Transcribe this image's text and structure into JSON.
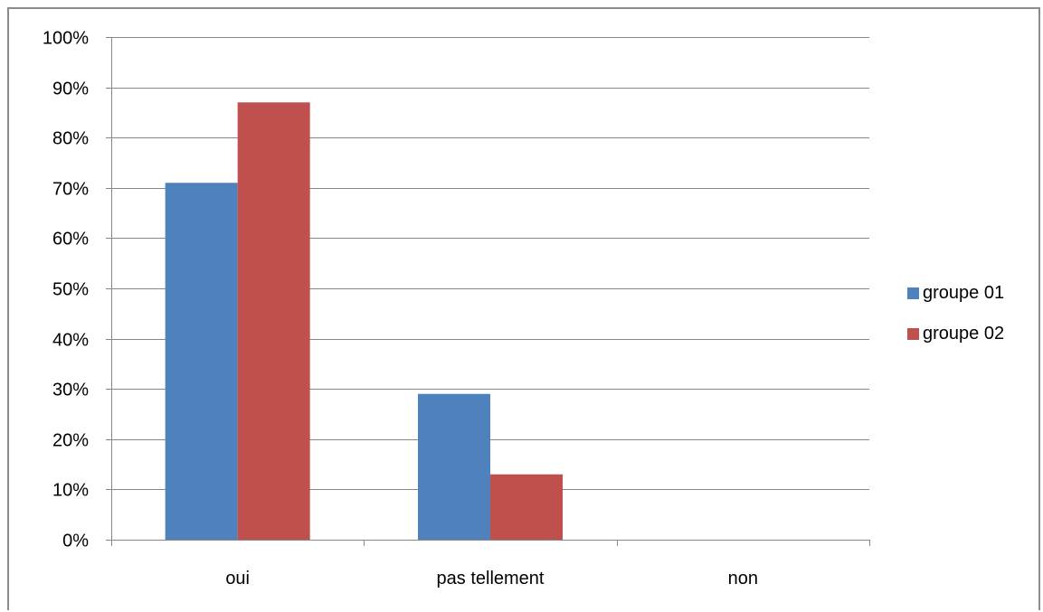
{
  "chart_data": {
    "type": "bar",
    "categories": [
      "oui",
      "pas tellement",
      "non"
    ],
    "series": [
      {
        "name": "groupe 01",
        "values": [
          0.71,
          0.29,
          0
        ],
        "color": "#4F81BD"
      },
      {
        "name": "groupe 02",
        "values": [
          0.87,
          0.13,
          0
        ],
        "color": "#C0504D"
      }
    ],
    "ylim": [
      0,
      1
    ],
    "yticks": [
      "0%",
      "10%",
      "20%",
      "30%",
      "40%",
      "50%",
      "60%",
      "70%",
      "80%",
      "90%",
      "100%"
    ],
    "grid": true,
    "legend_position": "right"
  }
}
